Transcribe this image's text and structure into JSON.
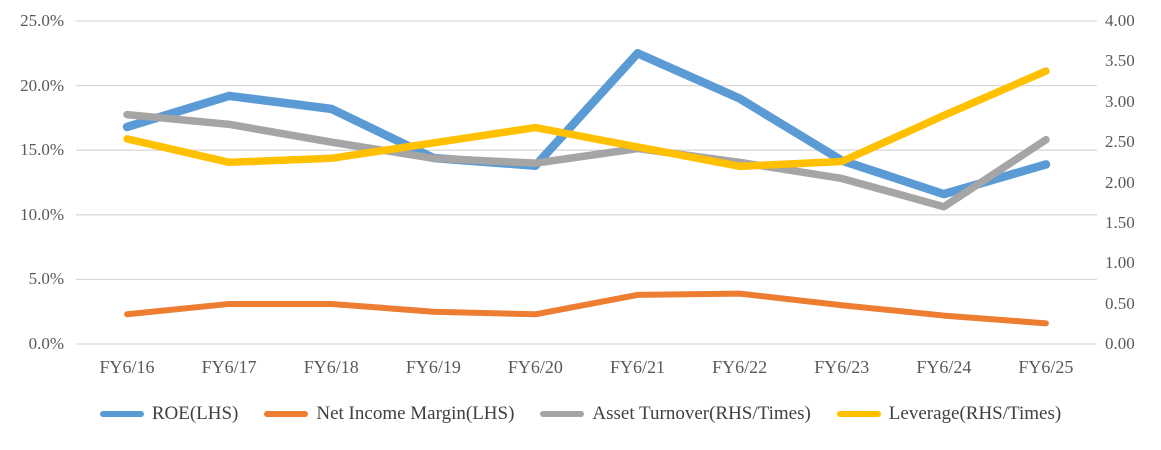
{
  "chart_data": {
    "type": "line",
    "title": "",
    "categories": [
      "FY6/16",
      "FY6/17",
      "FY6/18",
      "FY6/19",
      "FY6/20",
      "FY6/21",
      "FY6/22",
      "FY6/23",
      "FY6/24",
      "FY6/25"
    ],
    "series": [
      {
        "name": "ROE(LHS)",
        "axis": "left",
        "color": "#5B9BD5",
        "values": [
          16.8,
          19.2,
          18.2,
          14.4,
          13.8,
          22.5,
          19.0,
          14.2,
          11.6,
          13.9
        ]
      },
      {
        "name": "Net Income Margin(LHS)",
        "axis": "left",
        "color": "#ED7D31",
        "values": [
          2.3,
          3.1,
          3.1,
          2.5,
          2.3,
          3.8,
          3.9,
          3.0,
          2.2,
          1.6
        ]
      },
      {
        "name": "Asset Turnover(RHS/Times)",
        "axis": "right",
        "color": "#A5A5A5",
        "values": [
          2.84,
          2.72,
          2.5,
          2.3,
          2.24,
          2.42,
          2.25,
          2.05,
          1.7,
          2.53
        ]
      },
      {
        "name": "Leverage(RHS/Times)",
        "axis": "right",
        "color": "#FFC000",
        "values": [
          2.54,
          2.25,
          2.3,
          2.49,
          2.68,
          2.44,
          2.2,
          2.26,
          2.83,
          3.38
        ]
      }
    ],
    "left_axis": {
      "min": 0,
      "max": 25,
      "ticks": [
        "0.0%",
        "5.0%",
        "10.0%",
        "15.0%",
        "20.0%",
        "25.0%"
      ]
    },
    "right_axis": {
      "min": 0,
      "max": 4,
      "ticks": [
        "0.00",
        "0.50",
        "1.00",
        "1.50",
        "2.00",
        "2.50",
        "3.00",
        "3.50",
        "4.00"
      ]
    },
    "grid": "on",
    "grid_color": "#D9D9D9",
    "axis_text_color": "#595959",
    "legend_position": "bottom"
  }
}
